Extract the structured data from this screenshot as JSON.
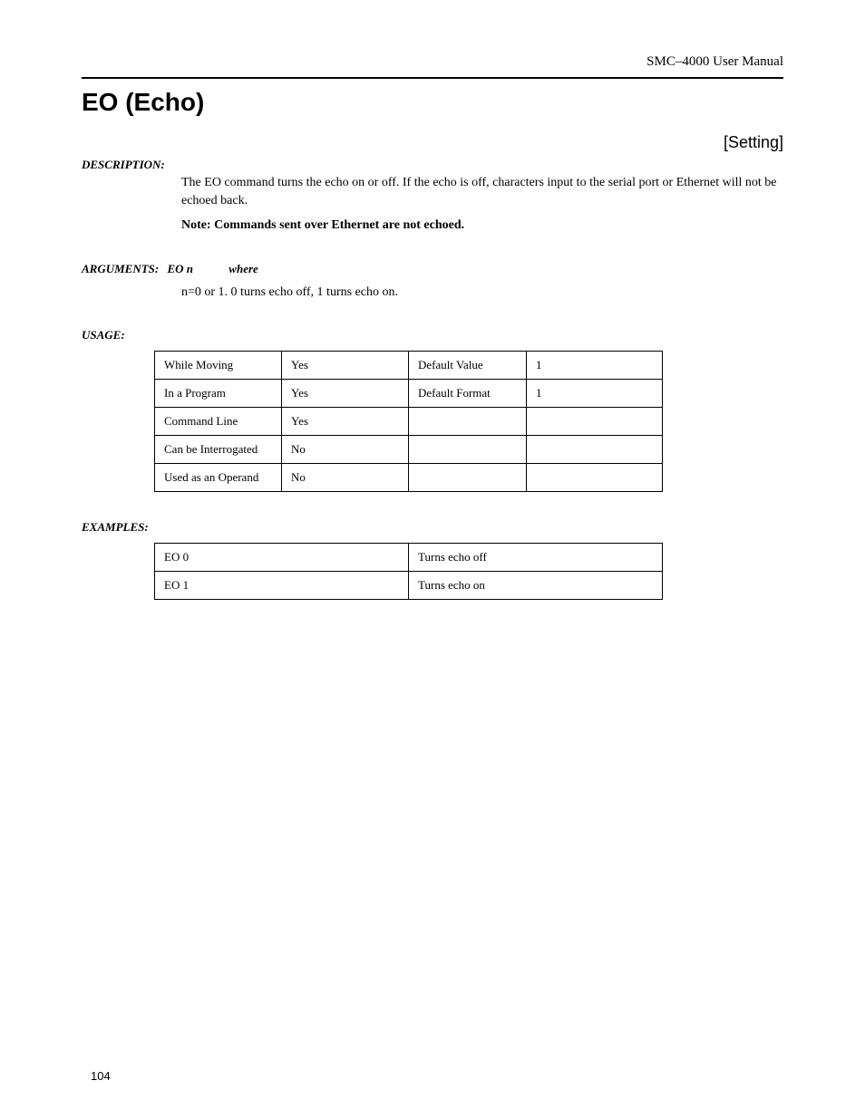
{
  "header": {
    "doc_title": "SMC–4000 User Manual"
  },
  "title": "EO (Echo)",
  "tag": "[Setting]",
  "description": {
    "label": "DESCRIPTION:",
    "paragraph": "The EO command turns the echo on or off. If the echo is off, characters input to the serial port or Ethernet will not be echoed back.",
    "note_label": "Note:",
    "note_text": "Commands sent over Ethernet are not echoed."
  },
  "arguments": {
    "label": "ARGUMENTS:",
    "cmd": "EO n",
    "where": "where",
    "desc": "n=0 or 1. 0 turns echo off, 1 turns echo on."
  },
  "usage": {
    "label": "USAGE:",
    "rows": [
      {
        "c1": "While Moving",
        "c2": "Yes",
        "c3": "Default Value",
        "c4": "1"
      },
      {
        "c1": "In a Program",
        "c2": "Yes",
        "c3": "Default Format",
        "c4": "1"
      },
      {
        "c1": "Command Line",
        "c2": "Yes",
        "c3": "",
        "c4": ""
      },
      {
        "c1": "Can be Interrogated",
        "c2": "No",
        "c3": "",
        "c4": ""
      },
      {
        "c1": "Used as an Operand",
        "c2": "No",
        "c3": "",
        "c4": ""
      }
    ]
  },
  "examples": {
    "label": "EXAMPLES:",
    "rows": [
      {
        "e1": "EO 0",
        "e2": "Turns echo off"
      },
      {
        "e1": "EO 1",
        "e2": "Turns echo on"
      }
    ]
  },
  "page_number": "104"
}
